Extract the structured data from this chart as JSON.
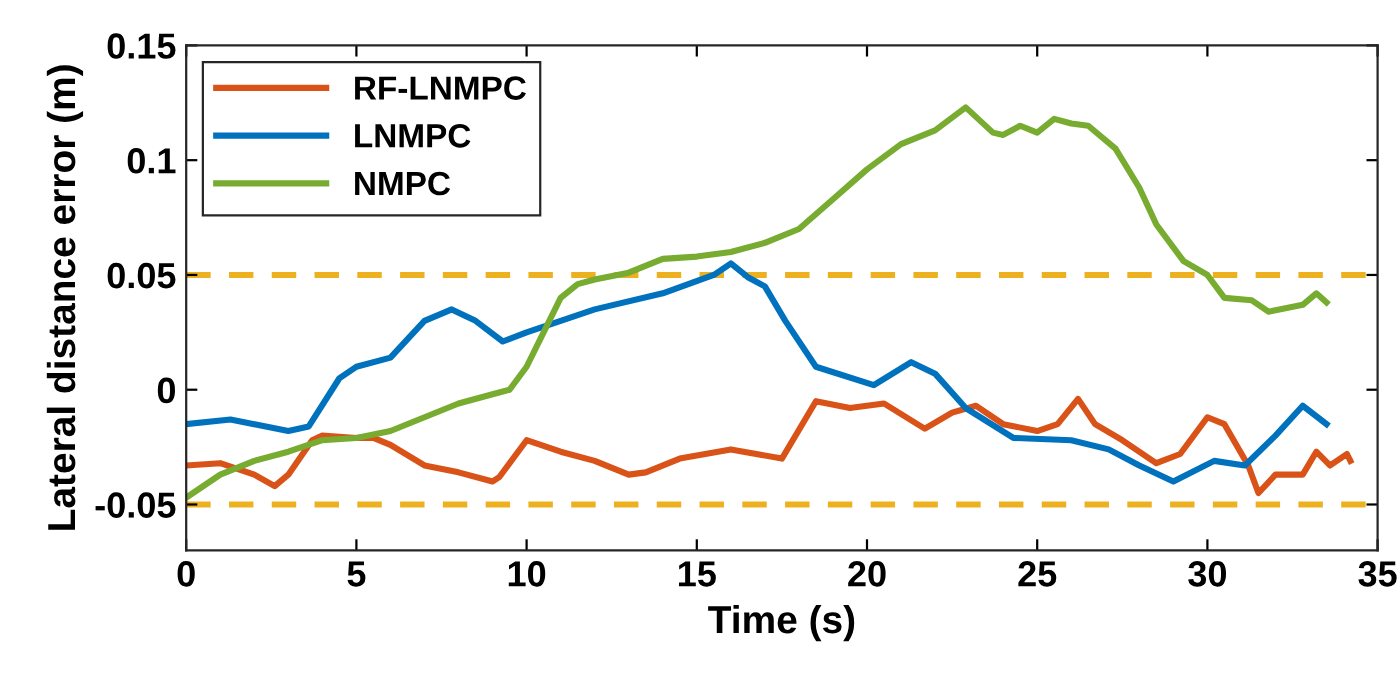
{
  "chart_data": {
    "type": "line",
    "xlabel": "Time (s)",
    "ylabel": "Lateral distance error (m)",
    "xlim": [
      0,
      35
    ],
    "xticks": [
      0,
      5,
      10,
      15,
      20,
      25,
      30,
      35
    ],
    "ylim": [
      -0.07,
      0.15
    ],
    "yticks": [
      -0.05,
      0,
      0.05,
      0.1,
      0.15
    ],
    "grid": false,
    "legend": "top left",
    "line_style": "solid",
    "marker": "none",
    "ref_lines": [
      {
        "axis": "y",
        "value": 0.05,
        "color": "#edb120",
        "line_style": "dashed"
      },
      {
        "axis": "y",
        "value": -0.05,
        "color": "#edb120",
        "line_style": "dashed"
      }
    ],
    "series": [
      {
        "name": "RF-LNMPC",
        "color": "#d95319",
        "x": [
          0,
          1,
          2,
          2.6,
          3,
          3.7,
          4,
          5,
          5.5,
          6,
          7,
          8,
          9,
          9.2,
          10,
          11,
          12,
          13,
          13.5,
          14.5,
          16,
          17.5,
          18.5,
          19.5,
          20.5,
          21.7,
          22.5,
          23.2,
          24,
          25,
          25.6,
          26.2,
          26.7,
          27.5,
          28.5,
          29.2,
          30,
          30.5,
          31.2,
          31.5,
          32,
          32.8,
          33.2,
          33.6,
          34.1,
          34.2
        ],
        "values": [
          -0.033,
          -0.032,
          -0.037,
          -0.042,
          -0.037,
          -0.022,
          -0.02,
          -0.021,
          -0.021,
          -0.024,
          -0.033,
          -0.036,
          -0.04,
          -0.038,
          -0.022,
          -0.027,
          -0.031,
          -0.037,
          -0.036,
          -0.03,
          -0.026,
          -0.03,
          -0.005,
          -0.008,
          -0.006,
          -0.017,
          -0.01,
          -0.007,
          -0.015,
          -0.018,
          -0.015,
          -0.004,
          -0.015,
          -0.022,
          -0.032,
          -0.028,
          -0.012,
          -0.015,
          -0.033,
          -0.045,
          -0.037,
          -0.037,
          -0.027,
          -0.033,
          -0.028,
          -0.031
        ]
      },
      {
        "name": "LNMPC",
        "color": "#0072bd",
        "x": [
          0,
          1.3,
          3,
          3.6,
          4.5,
          5,
          6,
          7,
          7.8,
          8.5,
          9.3,
          10,
          11,
          12,
          14,
          15.5,
          16,
          16.5,
          17,
          17.6,
          18.5,
          20.2,
          21.3,
          22,
          22.9,
          24.3,
          26,
          27.1,
          28,
          29,
          30.2,
          31.1,
          32,
          32.8,
          33.5
        ],
        "values": [
          -0.015,
          -0.013,
          -0.018,
          -0.016,
          0.005,
          0.01,
          0.014,
          0.03,
          0.035,
          0.03,
          0.021,
          0.025,
          0.03,
          0.035,
          0.042,
          0.05,
          0.055,
          0.049,
          0.045,
          0.03,
          0.01,
          0.002,
          0.012,
          0.007,
          -0.008,
          -0.021,
          -0.022,
          -0.026,
          -0.033,
          -0.04,
          -0.031,
          -0.033,
          -0.02,
          -0.007,
          -0.015
        ]
      },
      {
        "name": "NMPC",
        "color": "#77ac30",
        "x": [
          0,
          1,
          2,
          3,
          4,
          5,
          6,
          7,
          8,
          9,
          9.5,
          10,
          10.5,
          11,
          11.5,
          12,
          13,
          14,
          15,
          16,
          17,
          18,
          19,
          20,
          21,
          22,
          22.9,
          23.7,
          24,
          24.5,
          25,
          25.5,
          26,
          26.5,
          27.3,
          28,
          28.5,
          29.3,
          30,
          30.5,
          31.3,
          31.8,
          32.8,
          33.2,
          33.5
        ],
        "values": [
          -0.047,
          -0.037,
          -0.031,
          -0.027,
          -0.022,
          -0.021,
          -0.018,
          -0.012,
          -0.006,
          -0.002,
          0.0,
          0.01,
          0.025,
          0.04,
          0.046,
          0.048,
          0.051,
          0.057,
          0.058,
          0.06,
          0.064,
          0.07,
          0.083,
          0.096,
          0.107,
          0.113,
          0.123,
          0.112,
          0.111,
          0.115,
          0.112,
          0.118,
          0.116,
          0.115,
          0.105,
          0.088,
          0.072,
          0.056,
          0.05,
          0.04,
          0.039,
          0.034,
          0.037,
          0.042,
          0.038
        ]
      }
    ]
  }
}
